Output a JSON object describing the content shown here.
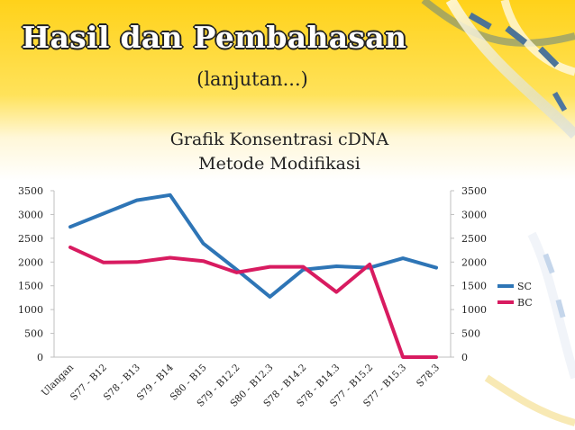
{
  "slide": {
    "title": "Hasil dan Pembahasan",
    "subtitle": "(lanjutan...)"
  },
  "colors": {
    "background_top": "#ffd21a",
    "background_bottom": "#ffffff",
    "SC": "#2e75b6",
    "BC": "#d81b60"
  },
  "chart_data": {
    "type": "line",
    "title_lines": [
      "Grafik Konsentrasi cDNA",
      "Metode Modifikasi"
    ],
    "categories": [
      "Ulangan",
      "S77 - B12",
      "S78 - B13",
      "S79 - B14",
      "S80 - B15",
      "S79 - B12.2",
      "S80 - B12.3",
      "S78 - B14.2",
      "S78 - B14.3",
      "S77 - B15.2",
      "S77 - B15.3",
      "S78.3"
    ],
    "series": [
      {
        "name": "SC",
        "values": [
          2740,
          3020,
          3300,
          3410,
          2390,
          1840,
          1270,
          1840,
          1910,
          1880,
          2080,
          1880
        ]
      },
      {
        "name": "BC",
        "values": [
          2310,
          1990,
          2000,
          2090,
          2020,
          1780,
          1900,
          1900,
          1370,
          1950,
          0,
          0
        ]
      }
    ],
    "yticks": [
      "0",
      "500",
      "1000",
      "1500",
      "2000",
      "2500",
      "3000",
      "3500"
    ],
    "ylim": [
      0,
      3500
    ],
    "secondary_axis": true,
    "grid": false,
    "legend": "right"
  }
}
